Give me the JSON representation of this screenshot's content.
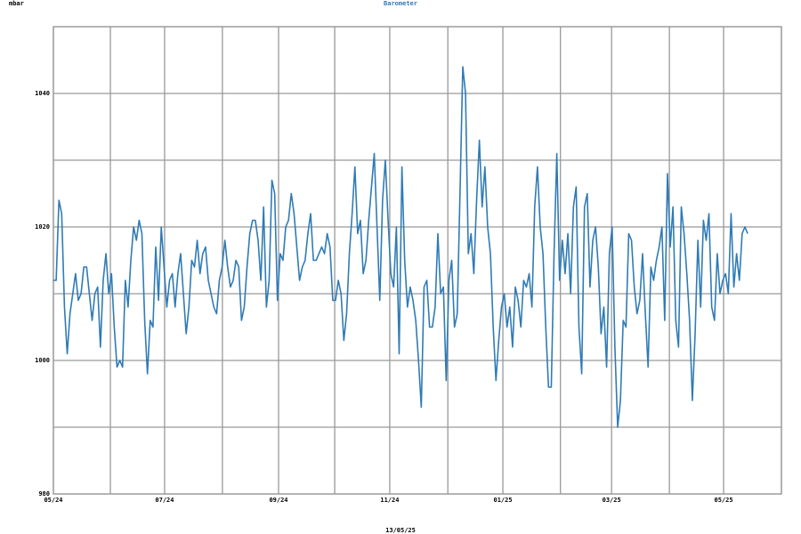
{
  "chart_data": {
    "type": "line",
    "title": "Barometer",
    "ylabel": "mbar",
    "xlabel": "13/05/25",
    "series": [
      {
        "name": "Barometer",
        "color": "#2f7bb6",
        "values": [
          1012,
          1012,
          1024,
          1022,
          1008,
          1001,
          1007,
          1010,
          1013,
          1009,
          1010,
          1014,
          1014,
          1010,
          1006,
          1010,
          1011,
          1002,
          1012,
          1016,
          1010,
          1013,
          1005,
          999,
          1000,
          999,
          1012,
          1008,
          1015,
          1020,
          1018,
          1021,
          1019,
          1006,
          998,
          1006,
          1005,
          1017,
          1009,
          1020,
          1014,
          1008,
          1012,
          1013,
          1008,
          1013,
          1016,
          1010,
          1004,
          1008,
          1015,
          1014,
          1018,
          1013,
          1016,
          1017,
          1012,
          1010,
          1008,
          1007,
          1012,
          1014,
          1018,
          1014,
          1011,
          1012,
          1015,
          1014,
          1006,
          1008,
          1014,
          1019,
          1021,
          1021,
          1018,
          1012,
          1023,
          1008,
          1012,
          1027,
          1025,
          1009,
          1016,
          1015,
          1020,
          1021,
          1025,
          1022,
          1017,
          1012,
          1014,
          1015,
          1019,
          1022,
          1015,
          1015,
          1016,
          1017,
          1016,
          1019,
          1017,
          1009,
          1009,
          1012,
          1010,
          1003,
          1007,
          1016,
          1022,
          1029,
          1019,
          1021,
          1013,
          1015,
          1021,
          1026,
          1031,
          1020,
          1009,
          1024,
          1030,
          1021,
          1013,
          1011,
          1020,
          1001,
          1029,
          1015,
          1008,
          1011,
          1009,
          1006,
          1000,
          993,
          1011,
          1012,
          1005,
          1005,
          1008,
          1019,
          1010,
          1011,
          997,
          1012,
          1015,
          1005,
          1007,
          1025,
          1044,
          1040,
          1016,
          1019,
          1013,
          1024,
          1033,
          1023,
          1029,
          1020,
          1016,
          1005,
          997,
          1003,
          1008,
          1010,
          1005,
          1008,
          1002,
          1011,
          1009,
          1005,
          1012,
          1011,
          1013,
          1008,
          1023,
          1029,
          1020,
          1016,
          1005,
          996,
          996,
          1016,
          1031,
          1012,
          1018,
          1013,
          1019,
          1010,
          1023,
          1026,
          1005,
          998,
          1023,
          1025,
          1011,
          1018,
          1020,
          1014,
          1004,
          1008,
          999,
          1016,
          1020,
          1002,
          990,
          994,
          1006,
          1005,
          1019,
          1018,
          1011,
          1007,
          1009,
          1016,
          1007,
          999,
          1014,
          1012,
          1015,
          1017,
          1020,
          1006,
          1028,
          1017,
          1023,
          1006,
          1002,
          1023,
          1019,
          1013,
          1006,
          994,
          1004,
          1018,
          1008,
          1021,
          1018,
          1022,
          1008,
          1006,
          1016,
          1010,
          1012,
          1013,
          1010,
          1022,
          1011,
          1016,
          1012,
          1019,
          1020,
          1019
        ]
      }
    ],
    "xlim": [
      0,
      263.2
    ],
    "xticks": [
      {
        "value": 0,
        "label": "05/24"
      },
      {
        "value": 40.2,
        "label": "07/24"
      },
      {
        "value": 81.4,
        "label": "09/24"
      },
      {
        "value": 121.6,
        "label": "11/24"
      },
      {
        "value": 162.5,
        "label": "01/25"
      },
      {
        "value": 201.8,
        "label": "03/25"
      },
      {
        "value": 242.3,
        "label": "05/25"
      }
    ],
    "x_minor_ticks": [
      20.6,
      61.1,
      101.7,
      142.6,
      183.3,
      222.7,
      263.2
    ],
    "ylim": [
      980,
      1050
    ],
    "yticks": [
      980,
      1000,
      1020,
      1040
    ],
    "y_minor_ticks": [
      990,
      1010,
      1030,
      1050
    ],
    "grid": true
  }
}
